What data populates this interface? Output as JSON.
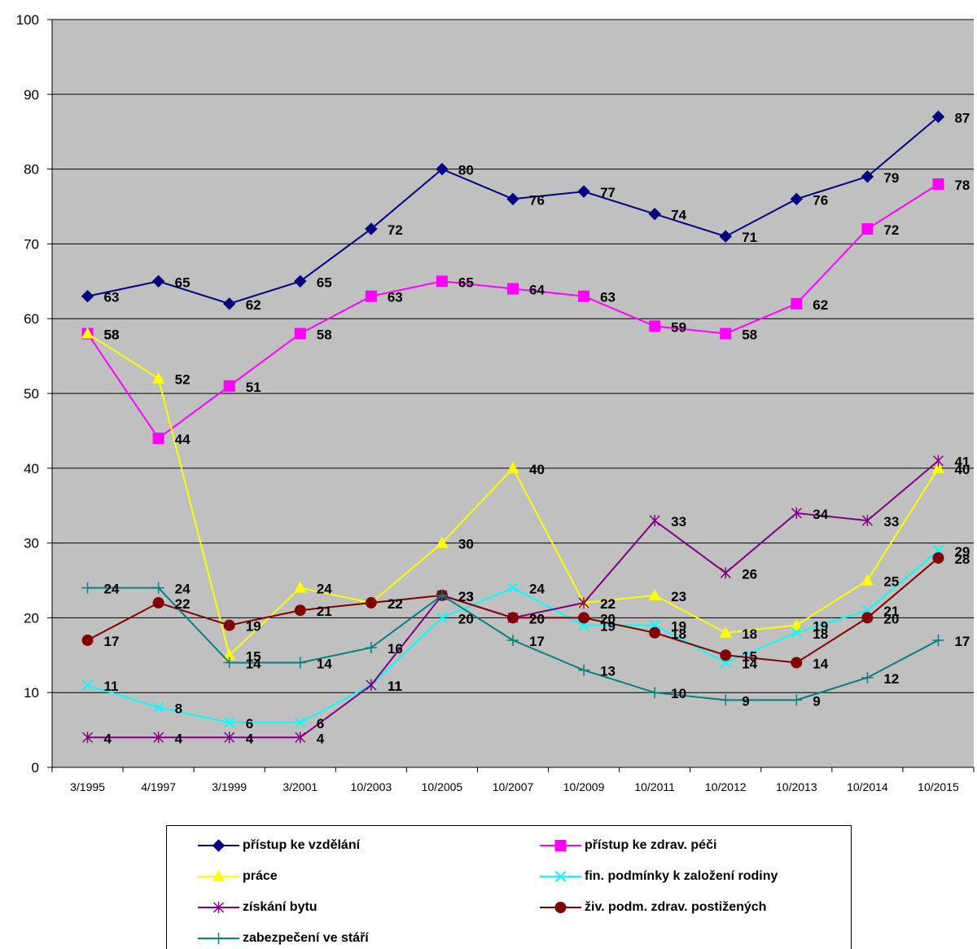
{
  "chart_data": {
    "type": "line",
    "title": "",
    "xlabel": "",
    "ylabel": "",
    "ylim": [
      0,
      100
    ],
    "yticks": [
      0,
      10,
      20,
      30,
      40,
      50,
      60,
      70,
      80,
      90,
      100
    ],
    "grid": true,
    "legend_position": "bottom",
    "plot_background": "#c0c0c0",
    "categories": [
      "3/1995",
      "4/1997",
      "3/1999",
      "3/2001",
      "10/2003",
      "10/2005",
      "10/2007",
      "10/2009",
      "10/2011",
      "10/2012",
      "10/2013",
      "10/2014",
      "10/2015"
    ],
    "series": [
      {
        "name": "přístup ke vzdělání",
        "color": "#000080",
        "marker": "diamond",
        "values": [
          63,
          65,
          62,
          65,
          72,
          80,
          76,
          77,
          74,
          71,
          76,
          79,
          87
        ]
      },
      {
        "name": "přístup ke zdrav. péči",
        "color": "#ff00ff",
        "marker": "square",
        "values": [
          58,
          44,
          51,
          58,
          63,
          65,
          64,
          63,
          59,
          58,
          62,
          72,
          78
        ]
      },
      {
        "name": "práce",
        "color": "#ffff00",
        "marker": "triangle",
        "values": [
          58,
          52,
          15,
          24,
          22,
          30,
          40,
          22,
          23,
          18,
          19,
          25,
          40
        ]
      },
      {
        "name": "fin. podmínky k založení rodiny",
        "color": "#00ffff",
        "marker": "x",
        "values": [
          11,
          8,
          6,
          6,
          11,
          20,
          24,
          19,
          19,
          14,
          18,
          21,
          29
        ]
      },
      {
        "name": "získání bytu",
        "color": "#800080",
        "marker": "star",
        "values": [
          4,
          4,
          4,
          4,
          11,
          23,
          20,
          22,
          33,
          26,
          34,
          33,
          41
        ]
      },
      {
        "name": "živ. podm. zdrav. postižených",
        "color": "#800000",
        "marker": "circle",
        "values": [
          17,
          22,
          19,
          21,
          22,
          23,
          20,
          20,
          18,
          15,
          14,
          20,
          28
        ]
      },
      {
        "name": "zabezpečení ve stáří",
        "color": "#008080",
        "marker": "plus",
        "values": [
          24,
          24,
          14,
          14,
          16,
          23,
          17,
          13,
          10,
          9,
          9,
          12,
          17
        ]
      }
    ]
  }
}
